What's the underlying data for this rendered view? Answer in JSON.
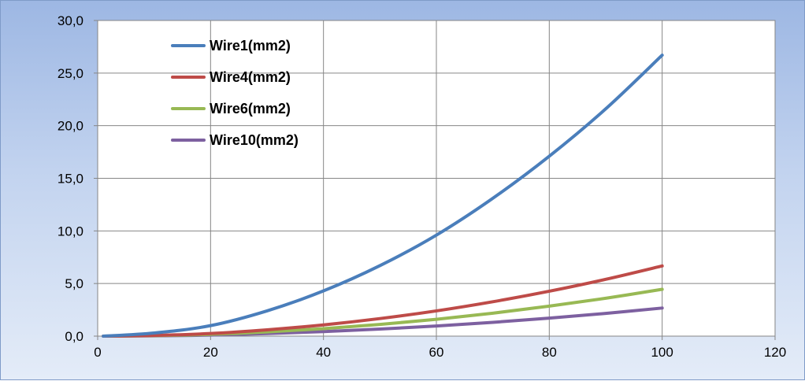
{
  "chart_data": {
    "type": "line",
    "title": "",
    "xlabel": "",
    "ylabel": "",
    "xlim": [
      0,
      120
    ],
    "ylim": [
      0,
      30
    ],
    "x_ticks": [
      0,
      20,
      40,
      60,
      80,
      100,
      120
    ],
    "x_tick_labels": [
      "0",
      "20",
      "40",
      "60",
      "80",
      "100",
      "120"
    ],
    "y_ticks": [
      0,
      5,
      10,
      15,
      20,
      25,
      30
    ],
    "y_tick_labels": [
      "0,0",
      "5,0",
      "10,0",
      "15,0",
      "20,0",
      "25,0",
      "30,0"
    ],
    "grid": true,
    "legend_position": "top-left",
    "x": [
      1,
      10,
      20,
      30,
      40,
      50,
      60,
      70,
      80,
      90,
      100
    ],
    "series": [
      {
        "name": "Wire1(mm2)",
        "color": "#4a7ebb",
        "values": [
          0,
          0.3,
          1.0,
          2.4,
          4.3,
          6.7,
          9.6,
          13.1,
          17.1,
          21.6,
          26.7
        ]
      },
      {
        "name": "Wire4(mm2)",
        "color": "#be4b48",
        "values": [
          0,
          0.07,
          0.25,
          0.6,
          1.07,
          1.67,
          2.4,
          3.27,
          4.27,
          5.4,
          6.67
        ]
      },
      {
        "name": "Wire6(mm2)",
        "color": "#98b954",
        "values": [
          0,
          0.05,
          0.17,
          0.4,
          0.71,
          1.11,
          1.6,
          2.18,
          2.85,
          3.6,
          4.45
        ]
      },
      {
        "name": "Wire10(mm2)",
        "color": "#7d60a0",
        "values": [
          0,
          0.03,
          0.1,
          0.24,
          0.43,
          0.67,
          0.96,
          1.31,
          1.71,
          2.16,
          2.67
        ]
      }
    ]
  }
}
